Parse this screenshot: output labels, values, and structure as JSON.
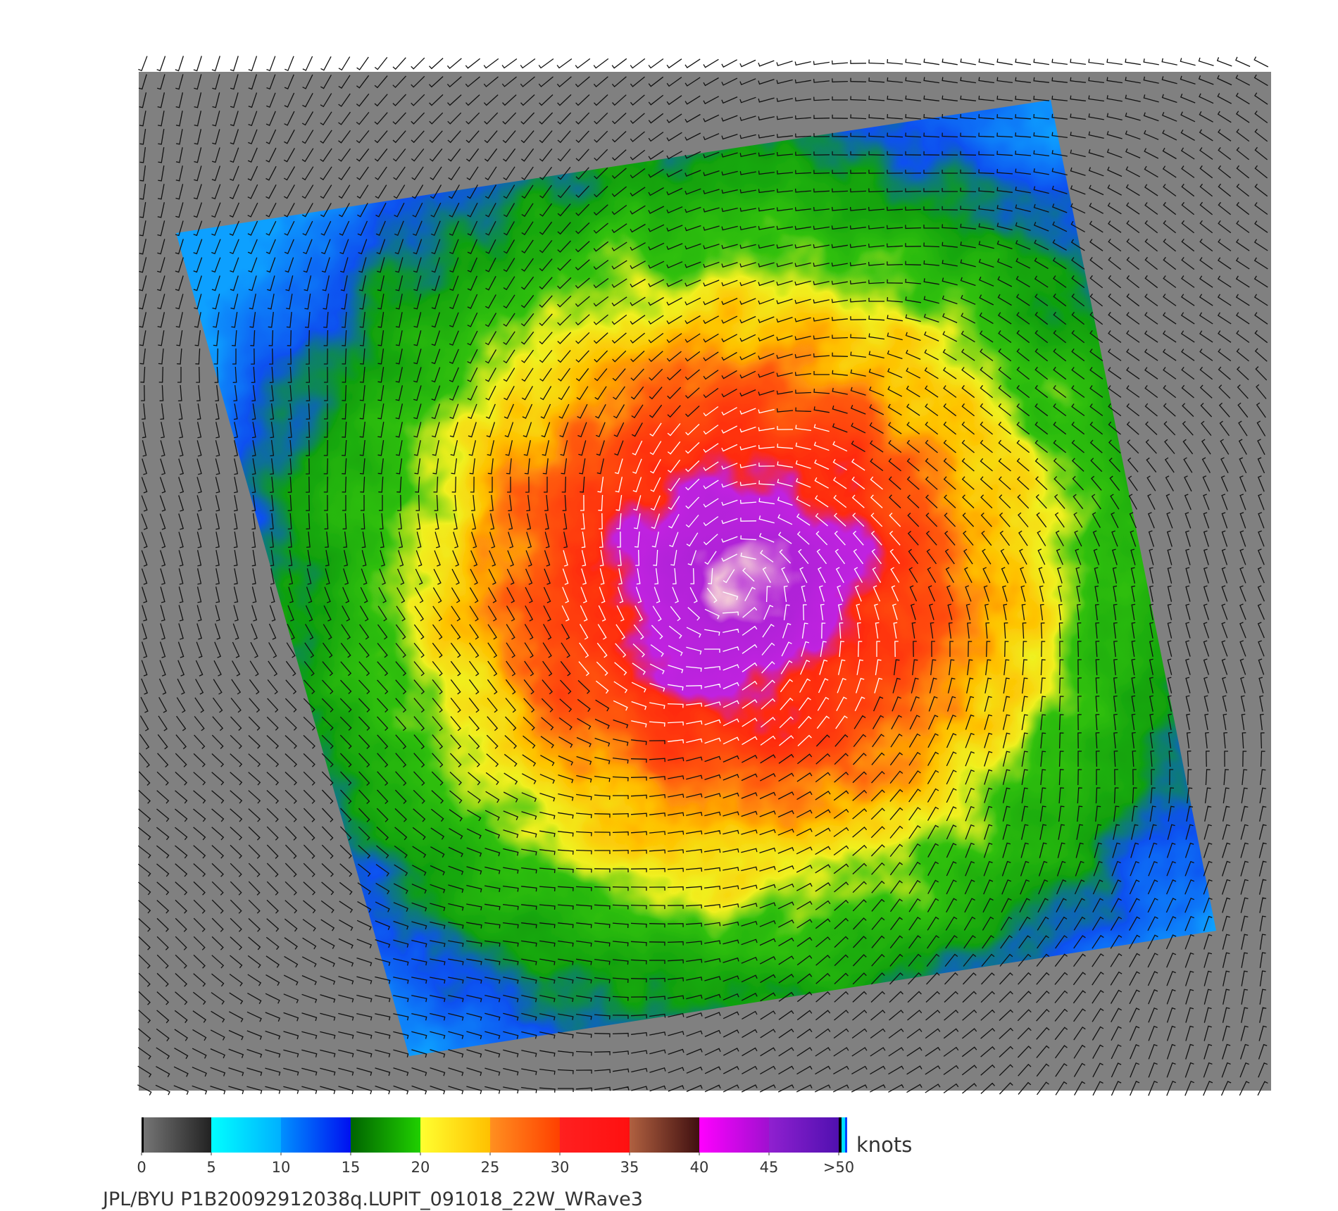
{
  "colorbar": {
    "unit": "knots",
    "range": [
      0,
      50
    ],
    "ticks": [
      0,
      5,
      10,
      15,
      20,
      25,
      30,
      35,
      40,
      45,
      {
        "value": 50,
        "label": ">50"
      }
    ],
    "colors": [
      [
        "#777777",
        "#222222"
      ],
      [
        "#00ffff",
        "#00b0ff"
      ],
      [
        "#0090ff",
        "#0010f0"
      ],
      [
        "#006400",
        "#20d000"
      ],
      [
        "#ffff30",
        "#ffc000"
      ],
      [
        "#ff9020",
        "#ff4000"
      ],
      [
        "#ff2020",
        "#ff1010"
      ],
      [
        "#b06040",
        "#401010"
      ],
      [
        "#ff00ff",
        "#a010d0"
      ],
      [
        "#9020d0",
        "#5010b0"
      ]
    ]
  },
  "footer": "JPL/BYU  P1B20092912038q.LUPIT_091018_22W_WRave3"
}
